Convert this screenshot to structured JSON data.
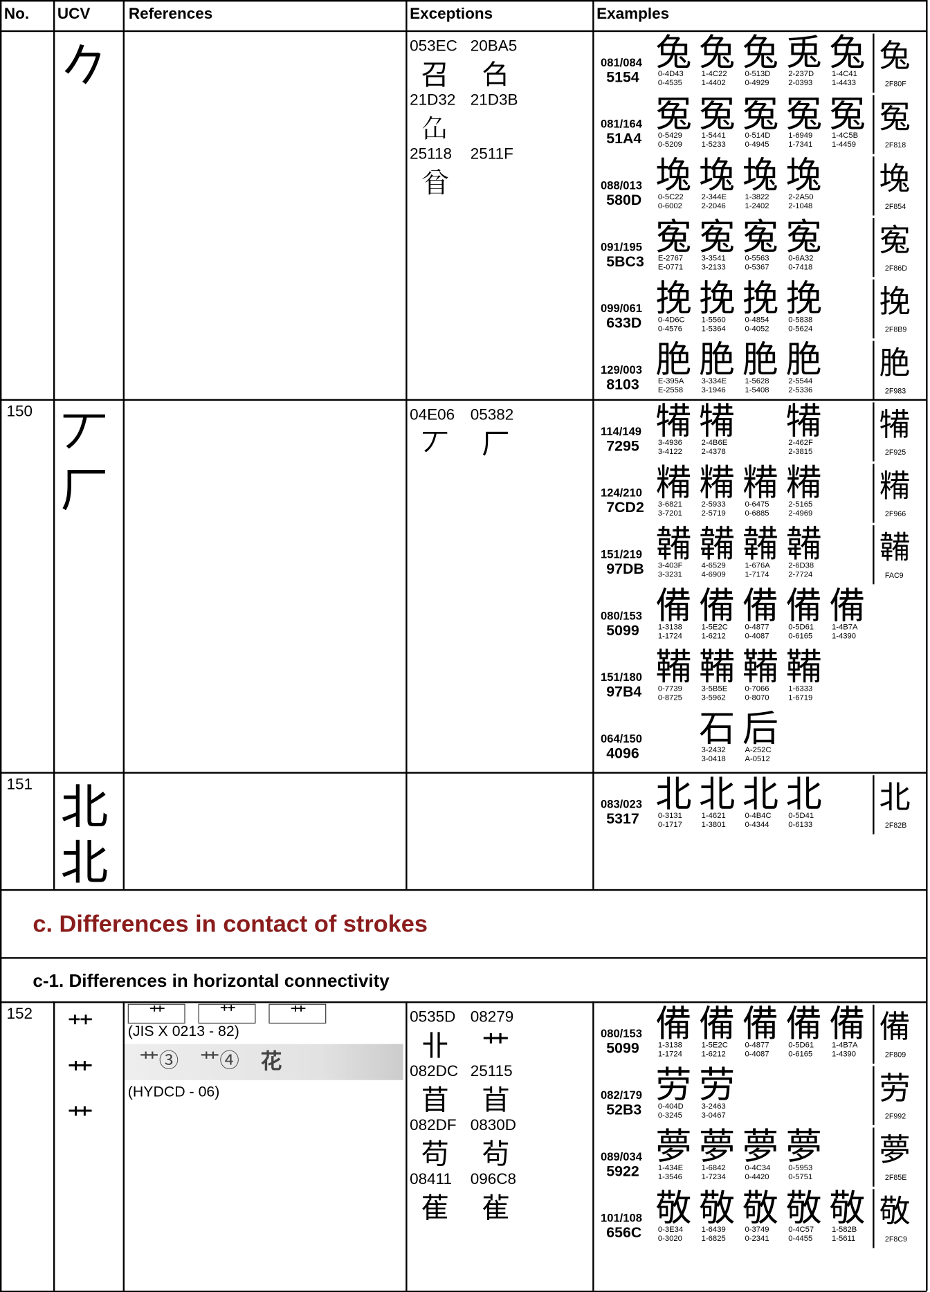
{
  "header": [
    "No.",
    "UCV",
    "References",
    "Exceptions",
    "Examples"
  ],
  "rows": [
    {
      "ucv": [
        "𠂊"
      ],
      "exceptions": [
        [
          "053EC",
          "召"
        ],
        [
          "20BA5",
          "𠮥"
        ],
        [
          "21D32",
          "𡴲"
        ],
        [
          "21D3B",
          "𡴻"
        ],
        [
          "25118",
          "𥄘"
        ],
        [
          "2511F",
          "𥄟"
        ]
      ],
      "examples": [
        {
          "radical": "081/084",
          "code": "5154",
          "glyphs": [
            {
              "char": "兔",
              "codes": [
                "0-4D43",
                "0-4535"
              ]
            },
            {
              "char": "兔",
              "codes": [
                "1-4C22",
                "1-4402"
              ]
            },
            {
              "char": "兔",
              "codes": [
                "0-513D",
                "0-4929"
              ]
            },
            {
              "char": "兎",
              "codes": [
                "2-237D",
                "2-0393"
              ]
            },
            {
              "char": "兔",
              "codes": [
                "1-4C41",
                "1-4433"
              ]
            }
          ],
          "compat": {
            "char": "兔",
            "code": "2F80F"
          }
        },
        {
          "radical": "081/164",
          "code": "51A4",
          "glyphs": [
            {
              "char": "冤",
              "codes": [
                "0-5429",
                "0-5209"
              ]
            },
            {
              "char": "冤",
              "codes": [
                "1-5441",
                "1-5233"
              ]
            },
            {
              "char": "冤",
              "codes": [
                "0-514D",
                "0-4945"
              ]
            },
            {
              "char": "冤",
              "codes": [
                "1-6949",
                "1-7341"
              ]
            },
            {
              "char": "冤",
              "codes": [
                "1-4C5B",
                "1-4459"
              ]
            }
          ],
          "compat": {
            "char": "冤",
            "code": "2F818"
          }
        },
        {
          "radical": "088/013",
          "code": "580D",
          "glyphs": [
            {
              "char": "堍",
              "codes": [
                "0-5C22",
                "0-6002"
              ]
            },
            {
              "char": "堍",
              "codes": [
                "2-344E",
                "2-2046"
              ]
            },
            {
              "char": "堍",
              "codes": [
                "1-3822",
                "1-2402"
              ]
            },
            {
              "char": "堍",
              "codes": [
                "2-2A50",
                "2-1048"
              ]
            }
          ],
          "compat": {
            "char": "堍",
            "code": "2F854"
          }
        },
        {
          "radical": "091/195",
          "code": "5BC3",
          "glyphs": [
            {
              "char": "寃",
              "codes": [
                "E-2767",
                "E-0771"
              ]
            },
            {
              "char": "寃",
              "codes": [
                "3-3541",
                "3-2133"
              ]
            },
            {
              "char": "寃",
              "codes": [
                "0-5563",
                "0-5367"
              ]
            },
            {
              "char": "寃",
              "codes": [
                "0-6A32",
                "0-7418"
              ]
            }
          ],
          "compat": {
            "char": "寃",
            "code": "2F86D"
          }
        },
        {
          "radical": "099/061",
          "code": "633D",
          "glyphs": [
            {
              "char": "挽",
              "codes": [
                "0-4D6C",
                "0-4576"
              ]
            },
            {
              "char": "挽",
              "codes": [
                "1-5560",
                "1-5364"
              ]
            },
            {
              "char": "挽",
              "codes": [
                "0-4854",
                "0-4052"
              ]
            },
            {
              "char": "挽",
              "codes": [
                "0-5838",
                "0-5624"
              ]
            }
          ],
          "compat": {
            "char": "挽",
            "code": "2F8B9"
          }
        },
        {
          "radical": "129/003",
          "code": "8103",
          "glyphs": [
            {
              "char": "脃",
              "codes": [
                "E-395A",
                "E-2558"
              ]
            },
            {
              "char": "脃",
              "codes": [
                "3-334E",
                "3-1946"
              ]
            },
            {
              "char": "脃",
              "codes": [
                "1-5628",
                "1-5408"
              ]
            },
            {
              "char": "脃",
              "codes": [
                "2-5544",
                "2-5336"
              ]
            }
          ],
          "compat": {
            "char": "脃",
            "code": "2F983"
          }
        }
      ]
    },
    {
      "no": "150",
      "ucv": [
        "丆",
        "厂"
      ],
      "exceptions": [
        [
          "04E06",
          "丆"
        ],
        [
          "05382",
          "厂"
        ]
      ],
      "examples": [
        {
          "radical": "114/149",
          "code": "7295",
          "glyphs": [
            {
              "char": "犕",
              "codes": [
                "3-4936",
                "3-4122"
              ]
            },
            {
              "char": "犕",
              "codes": [
                "2-4B6E",
                "2-4378"
              ]
            },
            null,
            {
              "char": "犕",
              "codes": [
                "2-462F",
                "2-3815"
              ]
            }
          ],
          "compat": {
            "char": "犕",
            "code": "2F925"
          }
        },
        {
          "radical": "124/210",
          "code": "7CD2",
          "glyphs": [
            {
              "char": "糒",
              "codes": [
                "3-6821",
                "3-7201"
              ]
            },
            {
              "char": "糒",
              "codes": [
                "2-5933",
                "2-5719"
              ]
            },
            {
              "char": "糒",
              "codes": [
                "0-6475",
                "0-6885"
              ]
            },
            {
              "char": "糒",
              "codes": [
                "2-5165",
                "2-4969"
              ]
            }
          ],
          "compat": {
            "char": "糒",
            "code": "2F966"
          }
        },
        {
          "radical": "151/219",
          "code": "97DB",
          "glyphs": [
            {
              "char": "韛",
              "codes": [
                "3-403F",
                "3-3231"
              ]
            },
            {
              "char": "韛",
              "codes": [
                "4-6529",
                "4-6909"
              ]
            },
            {
              "char": "韛",
              "codes": [
                "1-676A",
                "1-7174"
              ]
            },
            {
              "char": "韛",
              "codes": [
                "2-6D38",
                "2-7724"
              ]
            }
          ],
          "compat": {
            "char": "韛",
            "code": "FAC9"
          }
        },
        {
          "radical": "080/153",
          "code": "5099",
          "glyphs": [
            {
              "char": "備",
              "codes": [
                "1-3138",
                "1-1724"
              ]
            },
            {
              "char": "備",
              "codes": [
                "1-5E2C",
                "1-6212"
              ]
            },
            {
              "char": "備",
              "codes": [
                "0-4877",
                "0-4087"
              ]
            },
            {
              "char": "備",
              "codes": [
                "0-5D61",
                "0-6165"
              ]
            },
            {
              "char": "備",
              "codes": [
                "1-4B7A",
                "1-4390"
              ]
            }
          ]
        },
        {
          "radical": "151/180",
          "code": "97B4",
          "glyphs": [
            {
              "char": "鞴",
              "codes": [
                "0-7739",
                "0-8725"
              ]
            },
            {
              "char": "鞴",
              "codes": [
                "3-5B5E",
                "3-5962"
              ]
            },
            {
              "char": "鞴",
              "codes": [
                "0-7066",
                "0-8070"
              ]
            },
            {
              "char": "鞴",
              "codes": [
                "1-6333",
                "1-6719"
              ]
            }
          ]
        },
        {
          "radical": "064/150",
          "code": "4096",
          "glyphs": [
            null,
            {
              "char": "石",
              "codes": [
                "3-2432",
                "3-0418"
              ]
            },
            {
              "char": "后",
              "codes": [
                "A-252C",
                "A-0512"
              ]
            }
          ]
        }
      ]
    },
    {
      "no": "151",
      "ucv": [
        "北",
        "北"
      ],
      "exceptions": [],
      "examples": [
        {
          "radical": "083/023",
          "code": "5317",
          "glyphs": [
            {
              "char": "北",
              "codes": [
                "0-3131",
                "0-1717"
              ]
            },
            {
              "char": "北",
              "codes": [
                "1-4621",
                "1-3801"
              ]
            },
            {
              "char": "北",
              "codes": [
                "0-4B4C",
                "0-4344"
              ]
            },
            {
              "char": "北",
              "codes": [
                "0-5D41",
                "0-6133"
              ]
            }
          ],
          "compat": {
            "char": "北",
            "code": "2F82B"
          }
        }
      ]
    },
    {
      "section": "c. Differences in contact of strokes"
    },
    {
      "section": "c-1. Differences in horizontal connectivity"
    },
    {
      "no": "152",
      "ucv": [
        "⺿",
        "⺾",
        "艹"
      ],
      "references": [
        {
          "glyphs": [
            "⺾",
            "⺿",
            "艹"
          ],
          "source": "(JIS X 0213 - 82)"
        },
        {
          "glyphs": [
            "艹③",
            "艹④",
            "花"
          ],
          "source": "(HYDCD - 06)"
        }
      ],
      "exceptions": [
        [
          "0535D",
          "卝"
        ],
        [
          "08279",
          "艹"
        ],
        [
          "082DC",
          "苜"
        ],
        [
          "25115",
          "𥄕"
        ],
        [
          "082DF",
          "苟"
        ],
        [
          "0830D",
          "茍"
        ],
        [
          "08411",
          "萑"
        ],
        [
          "096C8",
          "雈"
        ]
      ],
      "examples": [
        {
          "radical": "080/153",
          "code": "5099",
          "glyphs": [
            {
              "char": "備",
              "codes": [
                "1-3138",
                "1-1724"
              ]
            },
            {
              "char": "備",
              "codes": [
                "1-5E2C",
                "1-6212"
              ]
            },
            {
              "char": "備",
              "codes": [
                "0-4877",
                "0-4087"
              ]
            },
            {
              "char": "備",
              "codes": [
                "0-5D61",
                "0-6165"
              ]
            },
            {
              "char": "備",
              "codes": [
                "1-4B7A",
                "1-4390"
              ]
            }
          ],
          "compat": {
            "char": "備",
            "code": "2F809"
          }
        },
        {
          "radical": "082/179",
          "code": "52B3",
          "glyphs": [
            {
              "char": "劳",
              "codes": [
                "0-404D",
                "0-3245"
              ]
            },
            {
              "char": "劳",
              "codes": [
                "3-2463",
                "3-0467"
              ]
            }
          ],
          "compat": {
            "char": "劳",
            "code": "2F992"
          }
        },
        {
          "radical": "089/034",
          "code": "5922",
          "glyphs": [
            {
              "char": "夢",
              "codes": [
                "1-434E",
                "1-3546"
              ]
            },
            {
              "char": "夢",
              "codes": [
                "1-6842",
                "1-7234"
              ]
            },
            {
              "char": "夢",
              "codes": [
                "0-4C34",
                "0-4420"
              ]
            },
            {
              "char": "夢",
              "codes": [
                "0-5953",
                "0-5751"
              ]
            }
          ],
          "compat": {
            "char": "夢",
            "code": "2F85E"
          }
        },
        {
          "radical": "101/108",
          "code": "656C",
          "glyphs": [
            {
              "char": "敬",
              "codes": [
                "0-3E34",
                "0-3020"
              ]
            },
            {
              "char": "敬",
              "codes": [
                "1-6439",
                "1-6825"
              ]
            },
            {
              "char": "敬",
              "codes": [
                "0-3749",
                "0-2341"
              ]
            },
            {
              "char": "敬",
              "codes": [
                "0-4C57",
                "0-4455"
              ]
            },
            {
              "char": "敬",
              "codes": [
                "1-582B",
                "1-5611"
              ]
            }
          ],
          "compat": {
            "char": "敬",
            "code": "2F8C9"
          }
        }
      ]
    }
  ]
}
